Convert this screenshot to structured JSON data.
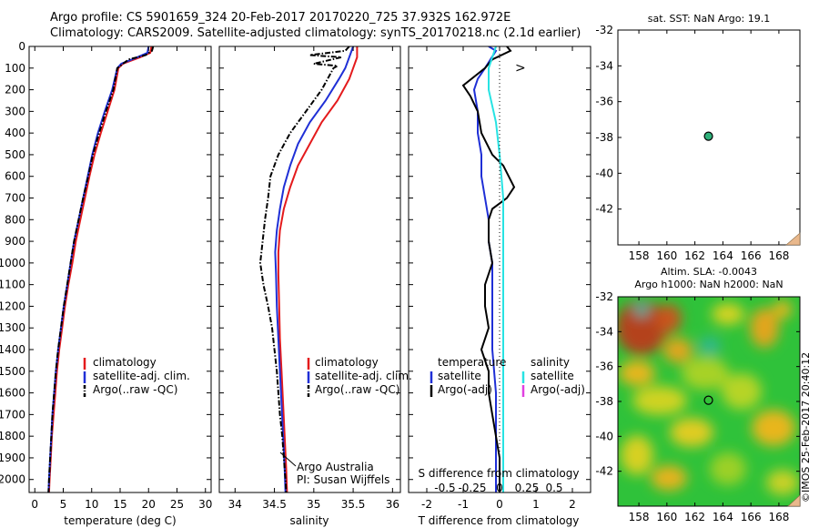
{
  "header": {
    "line1": "Argo profile: CS 5901659_324 20-Feb-2017 20170220_725 37.932S 162.972E",
    "line2": "Climatology: CARS2009. Satellite-adjusted climatology: synTS_20170218.nc (2.1d earlier)"
  },
  "footer_credit": "©IMOS 25-Feb-2017 20:40:12",
  "colors": {
    "climatology": "#e41a1c",
    "satellite": "#1f2fd6",
    "argo": "#000000",
    "salinity_satellite": "#27e3e3",
    "salinity_argo": "#e040e0",
    "float_marker": "#2fb07a"
  },
  "chart_data": [
    {
      "type": "line",
      "id": "temperature",
      "xlabel": "temperature (deg C)",
      "ylabel": "",
      "xlim": [
        -1,
        31
      ],
      "ylim": [
        2060,
        0
      ],
      "xticks": [
        0,
        5,
        10,
        15,
        20,
        25,
        30
      ],
      "yticks": [
        0,
        100,
        200,
        300,
        400,
        500,
        600,
        700,
        800,
        900,
        1000,
        1100,
        1200,
        1300,
        1400,
        1500,
        1600,
        1700,
        1800,
        1900,
        2000
      ],
      "legend": [
        "climatology",
        "satellite-adj. clim.",
        "Argo(..raw -QC)"
      ],
      "legend_placement": "middle",
      "series": [
        {
          "name": "climatology",
          "style": "solid",
          "color": "#e41a1c",
          "points": [
            [
              20.5,
              0
            ],
            [
              20.3,
              30
            ],
            [
              18.5,
              50
            ],
            [
              15.5,
              80
            ],
            [
              14.7,
              100
            ],
            [
              14.0,
              200
            ],
            [
              12.8,
              300
            ],
            [
              11.6,
              400
            ],
            [
              10.5,
              500
            ],
            [
              9.6,
              600
            ],
            [
              8.8,
              700
            ],
            [
              8.0,
              800
            ],
            [
              7.2,
              900
            ],
            [
              6.6,
              1000
            ],
            [
              5.9,
              1100
            ],
            [
              5.3,
              1200
            ],
            [
              4.8,
              1300
            ],
            [
              4.3,
              1400
            ],
            [
              3.9,
              1500
            ],
            [
              3.6,
              1600
            ],
            [
              3.3,
              1700
            ],
            [
              3.0,
              1800
            ],
            [
              2.8,
              1900
            ],
            [
              2.6,
              2000
            ],
            [
              2.5,
              2060
            ]
          ]
        },
        {
          "name": "satellite-adj. clim.",
          "style": "solid",
          "color": "#1f2fd6",
          "points": [
            [
              20.0,
              0
            ],
            [
              19.8,
              30
            ],
            [
              18.0,
              50
            ],
            [
              15.2,
              80
            ],
            [
              14.5,
              100
            ],
            [
              13.6,
              200
            ],
            [
              12.3,
              300
            ],
            [
              11.1,
              400
            ],
            [
              10.1,
              500
            ],
            [
              9.3,
              600
            ],
            [
              8.5,
              700
            ],
            [
              7.7,
              800
            ],
            [
              6.9,
              900
            ],
            [
              6.3,
              1000
            ],
            [
              5.7,
              1100
            ],
            [
              5.1,
              1200
            ],
            [
              4.6,
              1300
            ],
            [
              4.1,
              1400
            ],
            [
              3.7,
              1500
            ],
            [
              3.4,
              1600
            ],
            [
              3.1,
              1700
            ],
            [
              2.9,
              1800
            ],
            [
              2.7,
              1900
            ],
            [
              2.5,
              2000
            ],
            [
              2.4,
              2060
            ]
          ]
        },
        {
          "name": "Argo(..raw -QC)",
          "style": "dashdot",
          "color": "#000000",
          "points": [
            [
              20.8,
              0
            ],
            [
              20.6,
              20
            ],
            [
              19.5,
              40
            ],
            [
              16.5,
              60
            ],
            [
              14.5,
              100
            ],
            [
              13.8,
              200
            ],
            [
              12.5,
              300
            ],
            [
              11.3,
              400
            ],
            [
              10.2,
              500
            ],
            [
              9.4,
              600
            ],
            [
              8.5,
              700
            ],
            [
              7.7,
              800
            ],
            [
              6.9,
              900
            ],
            [
              6.3,
              1000
            ],
            [
              5.7,
              1100
            ],
            [
              5.1,
              1200
            ],
            [
              4.6,
              1300
            ],
            [
              4.1,
              1400
            ],
            [
              3.7,
              1500
            ],
            [
              3.4,
              1600
            ],
            [
              3.1,
              1700
            ],
            [
              2.9,
              1800
            ],
            [
              2.7,
              1900
            ],
            [
              2.5,
              2000
            ],
            [
              2.4,
              2060
            ]
          ]
        }
      ]
    },
    {
      "type": "line",
      "id": "salinity",
      "xlabel": "salinity",
      "ylabel": "",
      "xlim": [
        33.8,
        36.1
      ],
      "ylim": [
        2060,
        0
      ],
      "xticks": [
        34,
        34.5,
        35,
        35.5,
        36
      ],
      "legend": [
        "climatology",
        "satellite-adj. clim.",
        "Argo(..raw -QC)"
      ],
      "legend_placement": "middle",
      "annotation": [
        "Argo Australia",
        "PI: Susan Wijffels"
      ],
      "series": [
        {
          "name": "climatology",
          "style": "solid",
          "color": "#e41a1c",
          "points": [
            [
              35.55,
              0
            ],
            [
              35.55,
              50
            ],
            [
              35.5,
              100
            ],
            [
              35.45,
              150
            ],
            [
              35.3,
              250
            ],
            [
              35.1,
              350
            ],
            [
              34.95,
              450
            ],
            [
              34.8,
              550
            ],
            [
              34.7,
              650
            ],
            [
              34.62,
              750
            ],
            [
              34.57,
              850
            ],
            [
              34.55,
              950
            ],
            [
              34.55,
              1050
            ],
            [
              34.56,
              1200
            ],
            [
              34.57,
              1350
            ],
            [
              34.59,
              1500
            ],
            [
              34.61,
              1650
            ],
            [
              34.63,
              1800
            ],
            [
              34.65,
              1950
            ],
            [
              34.66,
              2060
            ]
          ]
        },
        {
          "name": "satellite-adj. clim.",
          "style": "solid",
          "color": "#1f2fd6",
          "points": [
            [
              35.5,
              0
            ],
            [
              35.45,
              50
            ],
            [
              35.4,
              100
            ],
            [
              35.32,
              150
            ],
            [
              35.15,
              250
            ],
            [
              34.95,
              350
            ],
            [
              34.8,
              450
            ],
            [
              34.7,
              550
            ],
            [
              34.62,
              650
            ],
            [
              34.57,
              750
            ],
            [
              34.53,
              850
            ],
            [
              34.51,
              950
            ],
            [
              34.52,
              1050
            ],
            [
              34.53,
              1200
            ],
            [
              34.55,
              1350
            ],
            [
              34.57,
              1500
            ],
            [
              34.59,
              1650
            ],
            [
              34.61,
              1800
            ],
            [
              34.63,
              1950
            ],
            [
              34.64,
              2060
            ]
          ]
        },
        {
          "name": "Argo(..raw -QC)",
          "style": "dashdot",
          "color": "#000000",
          "points": [
            [
              35.45,
              0
            ],
            [
              35.4,
              20
            ],
            [
              34.95,
              40
            ],
            [
              35.35,
              50
            ],
            [
              35.0,
              80
            ],
            [
              35.3,
              90
            ],
            [
              35.25,
              100
            ],
            [
              35.1,
              200
            ],
            [
              34.9,
              300
            ],
            [
              34.7,
              400
            ],
            [
              34.55,
              500
            ],
            [
              34.45,
              600
            ],
            [
              34.42,
              700
            ],
            [
              34.38,
              800
            ],
            [
              34.35,
              900
            ],
            [
              34.32,
              1000
            ],
            [
              34.36,
              1100
            ],
            [
              34.42,
              1200
            ],
            [
              34.47,
              1300
            ],
            [
              34.5,
              1400
            ],
            [
              34.53,
              1500
            ],
            [
              34.55,
              1600
            ],
            [
              34.57,
              1700
            ],
            [
              34.6,
              1800
            ],
            [
              34.62,
              1900
            ],
            [
              34.64,
              2000
            ],
            [
              34.65,
              2060
            ]
          ]
        }
      ]
    },
    {
      "type": "line",
      "id": "difference",
      "xlabel": "T difference from climatology",
      "xlabel_top": "S difference from climatology",
      "xlim": [
        -2.5,
        2.5
      ],
      "ylim": [
        2060,
        0
      ],
      "xticks": [
        -2,
        -1,
        0,
        1,
        2
      ],
      "xticks_s": [
        "-0.5",
        "-0.25",
        "0",
        "0.25",
        "0.5"
      ],
      "legend_left": {
        "header": "temperature",
        "items": [
          "satellite",
          "Argo(-adj)"
        ]
      },
      "legend_right": {
        "header": "salinity",
        "items": [
          "satellite",
          "Argo(-adj)"
        ]
      },
      "legend_placement": "bottom-middle",
      "series": [
        {
          "name": "temperature satellite",
          "style": "solid",
          "color": "#1f2fd6",
          "points": [
            [
              -0.3,
              0
            ],
            [
              -0.1,
              20
            ],
            [
              -0.4,
              100
            ],
            [
              -0.6,
              150
            ],
            [
              -0.7,
              200
            ],
            [
              -0.6,
              300
            ],
            [
              -0.6,
              400
            ],
            [
              -0.5,
              500
            ],
            [
              -0.5,
              600
            ],
            [
              -0.4,
              700
            ],
            [
              -0.3,
              800
            ],
            [
              -0.3,
              900
            ],
            [
              -0.2,
              1000
            ],
            [
              -0.2,
              1200
            ],
            [
              -0.2,
              1400
            ],
            [
              -0.1,
              1600
            ],
            [
              -0.1,
              1800
            ],
            [
              -0.1,
              2000
            ],
            [
              -0.1,
              2060
            ]
          ]
        },
        {
          "name": "temperature Argo(-adj)",
          "style": "solid",
          "color": "#000000",
          "points": [
            [
              0.2,
              0
            ],
            [
              0.3,
              20
            ],
            [
              -0.2,
              60
            ],
            [
              -0.4,
              100
            ],
            [
              -1.0,
              180
            ],
            [
              -0.8,
              230
            ],
            [
              -0.6,
              300
            ],
            [
              -0.5,
              400
            ],
            [
              -0.2,
              500
            ],
            [
              0.1,
              550
            ],
            [
              0.4,
              650
            ],
            [
              0.2,
              700
            ],
            [
              -0.2,
              750
            ],
            [
              -0.3,
              800
            ],
            [
              -0.3,
              900
            ],
            [
              -0.2,
              1000
            ],
            [
              -0.4,
              1100
            ],
            [
              -0.4,
              1200
            ],
            [
              -0.3,
              1300
            ],
            [
              -0.5,
              1400
            ],
            [
              -0.3,
              1500
            ],
            [
              -0.3,
              1600
            ],
            [
              -0.2,
              1700
            ],
            [
              -0.1,
              1800
            ],
            [
              0.0,
              1900
            ],
            [
              0.0,
              2000
            ],
            [
              0.0,
              2060
            ]
          ]
        },
        {
          "name": "salinity satellite",
          "style": "solid",
          "color": "#27e3e3",
          "points": [
            [
              -0.1,
              0
            ],
            [
              -0.2,
              50
            ],
            [
              -0.3,
              100
            ],
            [
              -0.3,
              200
            ],
            [
              -0.1,
              350
            ],
            [
              0.0,
              500
            ],
            [
              0.1,
              700
            ],
            [
              0.1,
              900
            ],
            [
              0.1,
              1100
            ],
            [
              0.1,
              1300
            ],
            [
              0.1,
              1500
            ],
            [
              0.1,
              1700
            ],
            [
              0.1,
              1900
            ],
            [
              0.1,
              2060
            ]
          ]
        }
      ]
    },
    {
      "type": "scatter",
      "id": "sst-map",
      "title": "sat. SST: NaN Argo: 19.1",
      "xlim": [
        156.5,
        169.5
      ],
      "ylim": [
        -44,
        -32
      ],
      "xticks": [
        158,
        160,
        162,
        164,
        166,
        168
      ],
      "yticks": [
        -32,
        -34,
        -36,
        -38,
        -40,
        -42
      ],
      "points": [
        {
          "x": 162.97,
          "y": -37.93
        }
      ]
    },
    {
      "type": "heatmap",
      "id": "sla-map",
      "title": "Altim. SLA: -0.0043",
      "subtitle": "Argo h1000: NaN h2000: NaN",
      "xlim": [
        156.5,
        169.5
      ],
      "ylim": [
        -44,
        -32
      ],
      "xticks": [
        158,
        160,
        162,
        164,
        166,
        168
      ],
      "yticks": [
        -32,
        -34,
        -36,
        -38,
        -40,
        -42
      ],
      "points": [
        {
          "x": 162.97,
          "y": -37.93
        }
      ]
    }
  ]
}
